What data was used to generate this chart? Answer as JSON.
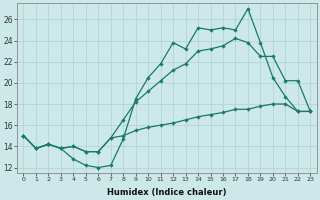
{
  "xlabel": "Humidex (Indice chaleur)",
  "bg_color": "#cce8e8",
  "grid_color": "#b0d0d0",
  "line_color": "#1a7a6a",
  "xlim": [
    -0.5,
    23.5
  ],
  "ylim": [
    11.5,
    27.5
  ],
  "yticks": [
    12,
    14,
    16,
    18,
    20,
    22,
    24,
    26
  ],
  "xticks": [
    0,
    1,
    2,
    3,
    4,
    5,
    6,
    7,
    8,
    9,
    10,
    11,
    12,
    13,
    14,
    15,
    16,
    17,
    18,
    19,
    20,
    21,
    22,
    23
  ],
  "line1_x": [
    0,
    1,
    2,
    3,
    4,
    5,
    6,
    7,
    8,
    9,
    10,
    11,
    12,
    13,
    14,
    15,
    16,
    17,
    18,
    19,
    20,
    21,
    22,
    23
  ],
  "line1_y": [
    15.0,
    13.8,
    14.2,
    13.8,
    12.8,
    12.2,
    12.0,
    12.2,
    14.7,
    18.5,
    20.5,
    21.8,
    23.8,
    23.2,
    25.2,
    25.0,
    25.2,
    25.0,
    27.0,
    23.8,
    20.5,
    18.7,
    17.3,
    17.3
  ],
  "line2_x": [
    0,
    1,
    2,
    3,
    4,
    5,
    6,
    7,
    8,
    9,
    10,
    11,
    12,
    13,
    14,
    15,
    16,
    17,
    18,
    19,
    20,
    21,
    22,
    23
  ],
  "line2_y": [
    15.0,
    13.8,
    14.2,
    13.8,
    14.0,
    13.5,
    13.5,
    14.8,
    16.5,
    18.2,
    19.2,
    20.2,
    21.2,
    21.8,
    23.0,
    23.2,
    23.5,
    24.2,
    23.8,
    22.5,
    22.5,
    20.2,
    20.2,
    17.3
  ],
  "line3_x": [
    0,
    1,
    2,
    3,
    4,
    5,
    6,
    7,
    8,
    9,
    10,
    11,
    12,
    13,
    14,
    15,
    16,
    17,
    18,
    19,
    20,
    21,
    22,
    23
  ],
  "line3_y": [
    15.0,
    13.8,
    14.2,
    13.8,
    14.0,
    13.5,
    13.5,
    14.8,
    15.0,
    15.5,
    15.8,
    16.0,
    16.2,
    16.5,
    16.8,
    17.0,
    17.2,
    17.5,
    17.5,
    17.8,
    18.0,
    18.0,
    17.3,
    17.3
  ]
}
